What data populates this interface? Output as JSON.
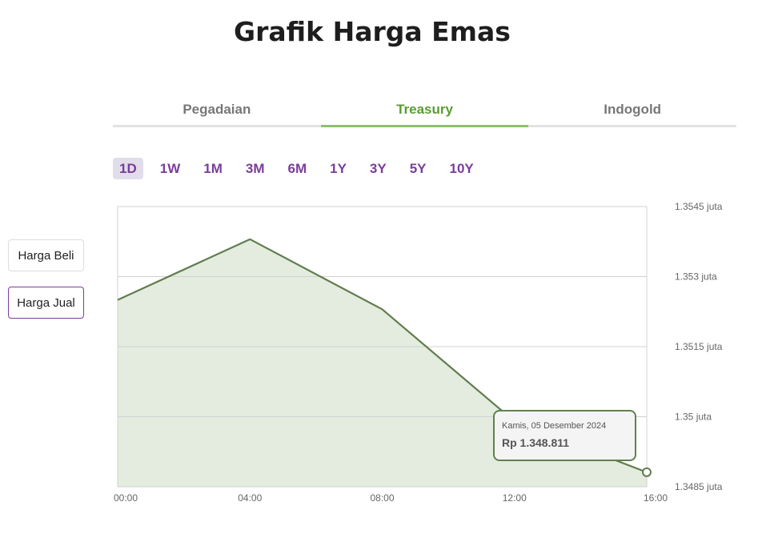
{
  "page": {
    "title": "Grafik Harga Emas"
  },
  "tabs": [
    {
      "label": "Pegadaian",
      "active": false
    },
    {
      "label": "Treasury",
      "active": true
    },
    {
      "label": "Indogold",
      "active": false
    }
  ],
  "ranges": [
    {
      "label": "1D",
      "active": true
    },
    {
      "label": "1W",
      "active": false
    },
    {
      "label": "1M",
      "active": false
    },
    {
      "label": "3M",
      "active": false
    },
    {
      "label": "6M",
      "active": false
    },
    {
      "label": "1Y",
      "active": false
    },
    {
      "label": "3Y",
      "active": false
    },
    {
      "label": "5Y",
      "active": false
    },
    {
      "label": "10Y",
      "active": false
    }
  ],
  "side_buttons": {
    "buy_label": "Harga Beli",
    "sell_label": "Harga Jual",
    "active": "sell"
  },
  "colors": {
    "line": "#627c4e",
    "area": "#e4ecdf",
    "accent_purple": "#7b3d9a",
    "accent_green": "#5b9b35"
  },
  "tooltip": {
    "date": "Kamis, 05 Desember 2024",
    "price": "Rp 1.348.811"
  },
  "chart_data": {
    "type": "area",
    "title": "",
    "xlabel": "",
    "ylabel": "",
    "x": [
      "00:00",
      "04:00",
      "08:00",
      "12:00",
      "16:00"
    ],
    "x_hours": [
      0,
      4,
      8,
      12,
      16
    ],
    "x_ticks": [
      "00:00",
      "04:00",
      "08:00",
      "12:00",
      "16:00"
    ],
    "series": [
      {
        "x_hours": [
          0,
          4,
          8,
          12,
          16
        ],
        "values": [
          1352.5,
          1353.8,
          1352.3,
          1349.9,
          1348.811
        ]
      }
    ],
    "ylim": [
      1348.5,
      1354.5
    ],
    "y_ticks": [
      {
        "value": 1348.5,
        "label": "1.3485 juta"
      },
      {
        "value": 1350.0,
        "label": "1.35 juta"
      },
      {
        "value": 1351.5,
        "label": "1.3515 juta"
      },
      {
        "value": 1353.0,
        "label": "1.353 juta"
      },
      {
        "value": 1354.5,
        "label": "1.3545 juta"
      }
    ],
    "grid": true,
    "y_axis_side": "right"
  }
}
